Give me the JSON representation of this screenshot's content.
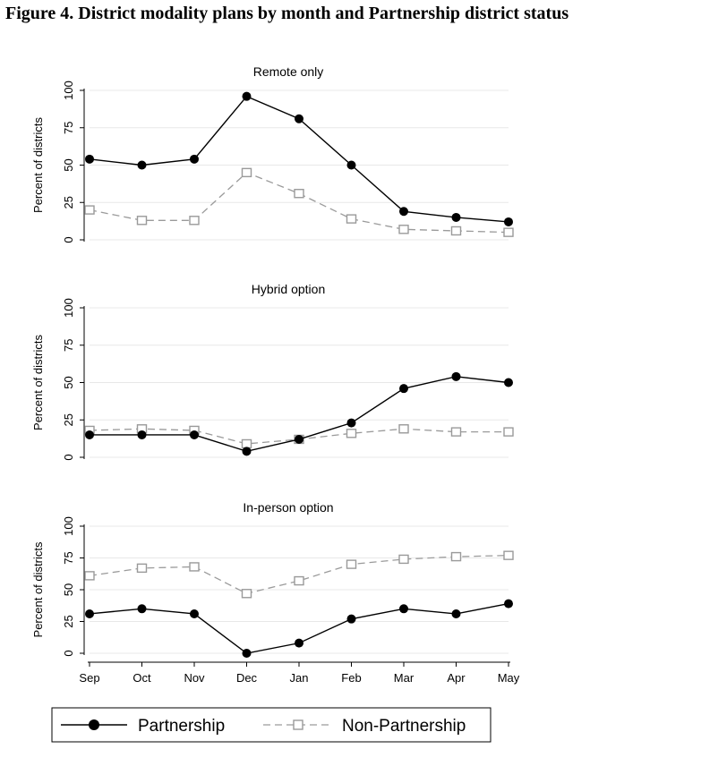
{
  "figure_title": "Figure 4. District modality plans by month and Partnership district status",
  "colors": {
    "partnership": "#000000",
    "non_partnership": "#9a9a9a",
    "grid": "#e8e8e8"
  },
  "chart_data": [
    {
      "type": "line",
      "title": "Remote only",
      "ylabel": "Percent of districts",
      "xlabel": "",
      "x": [
        "Sep",
        "Oct",
        "Nov",
        "Dec",
        "Jan",
        "Feb",
        "Mar",
        "Apr",
        "May"
      ],
      "ylim": [
        0,
        100
      ],
      "yticks": [
        0,
        25,
        50,
        75,
        100
      ],
      "show_x_tick_labels": false,
      "grid": true,
      "series": [
        {
          "name": "Partnership",
          "values": [
            54,
            50,
            54,
            96,
            81,
            50,
            19,
            15,
            12
          ]
        },
        {
          "name": "Non-Partnership",
          "values": [
            20,
            13,
            13,
            45,
            31,
            14,
            7,
            6,
            5
          ]
        }
      ]
    },
    {
      "type": "line",
      "title": "Hybrid option",
      "ylabel": "Percent of districts",
      "xlabel": "",
      "x": [
        "Sep",
        "Oct",
        "Nov",
        "Dec",
        "Jan",
        "Feb",
        "Mar",
        "Apr",
        "May"
      ],
      "ylim": [
        0,
        100
      ],
      "yticks": [
        0,
        25,
        50,
        75,
        100
      ],
      "show_x_tick_labels": false,
      "grid": true,
      "series": [
        {
          "name": "Partnership",
          "values": [
            15,
            15,
            15,
            4,
            12,
            23,
            46,
            54,
            50
          ]
        },
        {
          "name": "Non-Partnership",
          "values": [
            18,
            19,
            18,
            9,
            12,
            16,
            19,
            17,
            17
          ]
        }
      ]
    },
    {
      "type": "line",
      "title": "In-person option",
      "ylabel": "Percent of districts",
      "xlabel": "",
      "x": [
        "Sep",
        "Oct",
        "Nov",
        "Dec",
        "Jan",
        "Feb",
        "Mar",
        "Apr",
        "May"
      ],
      "ylim": [
        0,
        100
      ],
      "yticks": [
        0,
        25,
        50,
        75,
        100
      ],
      "show_x_tick_labels": true,
      "grid": true,
      "series": [
        {
          "name": "Partnership",
          "values": [
            31,
            35,
            31,
            0,
            8,
            27,
            35,
            31,
            39
          ]
        },
        {
          "name": "Non-Partnership",
          "values": [
            61,
            67,
            68,
            47,
            57,
            70,
            74,
            76,
            77
          ]
        }
      ]
    }
  ],
  "legend": {
    "placement": "bottom",
    "items": [
      {
        "label": "Partnership",
        "style": "solid-filled-circle"
      },
      {
        "label": "Non-Partnership",
        "style": "dashed-hollow-square"
      }
    ]
  }
}
